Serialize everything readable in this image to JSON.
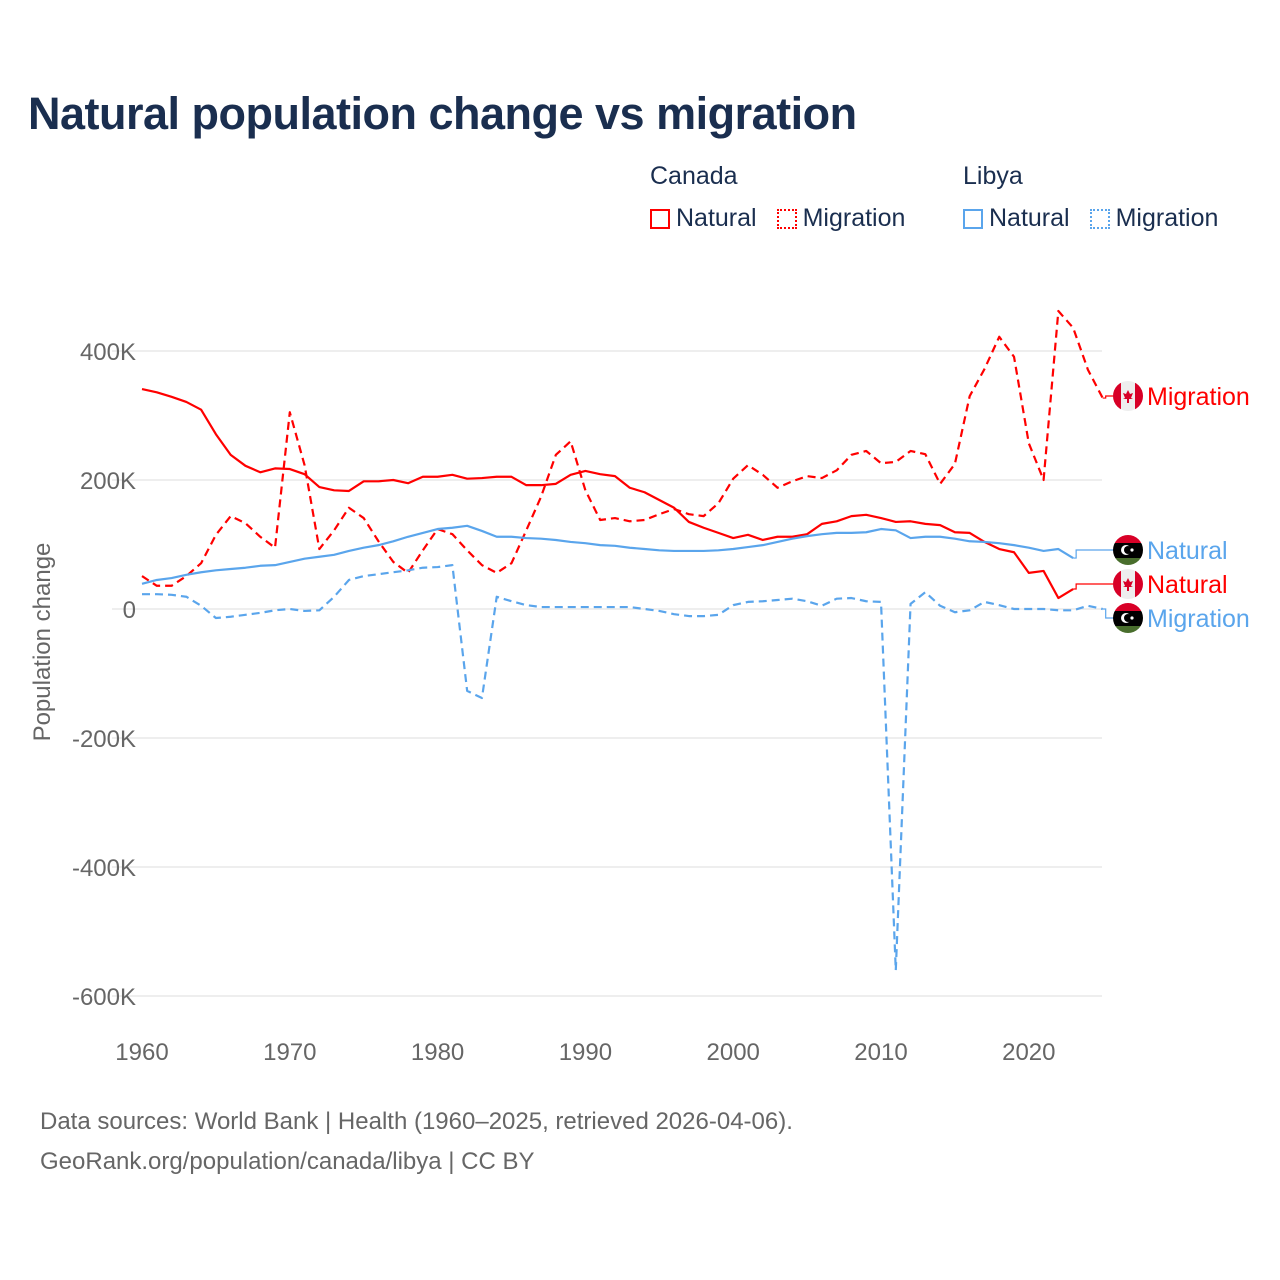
{
  "chart_data": {
    "type": "line",
    "title": "Natural population change vs migration",
    "xlabel": "",
    "ylabel": "Population change",
    "xlim": [
      1960,
      2025
    ],
    "ylim": [
      -600,
      450
    ],
    "y_unit": "thousands",
    "grid": true,
    "legend_placement": "top-right",
    "x_ticks": [
      "1960",
      "1970",
      "1980",
      "1990",
      "2000",
      "2010",
      "2020"
    ],
    "y_ticks": [
      {
        "value": 400,
        "label": "400K"
      },
      {
        "value": 200,
        "label": "200K"
      },
      {
        "value": 0,
        "label": "0"
      },
      {
        "value": -200,
        "label": "-200K"
      },
      {
        "value": -400,
        "label": "-400K"
      },
      {
        "value": -600,
        "label": "-600K"
      }
    ],
    "legend": [
      {
        "group": "Canada",
        "items": [
          {
            "label": "Natural",
            "color": "#ff0000",
            "style": "solid"
          },
          {
            "label": "Migration",
            "color": "#ff0000",
            "style": "dotted"
          }
        ]
      },
      {
        "group": "Libya",
        "items": [
          {
            "label": "Natural",
            "color": "#5aa5ec",
            "style": "solid"
          },
          {
            "label": "Migration",
            "color": "#5aa5ec",
            "style": "dotted"
          }
        ]
      }
    ],
    "series": [
      {
        "name": "Canada Natural",
        "label": "Natural",
        "country": "canada",
        "color": "#ff0000",
        "dash": false,
        "start": 1960,
        "values": [
          341,
          336,
          329,
          321,
          309,
          271,
          239,
          222,
          212,
          218,
          217,
          209,
          189,
          184,
          183,
          198,
          198,
          200,
          195,
          205,
          205,
          208,
          202,
          203,
          205,
          205,
          192,
          192,
          194,
          208,
          214,
          209,
          206,
          188,
          181,
          169,
          157,
          135,
          126,
          118,
          110,
          115,
          107,
          112,
          112,
          116,
          132,
          136,
          144,
          146,
          141,
          135,
          136,
          132,
          130,
          119,
          118,
          104,
          93,
          88,
          56,
          59,
          17,
          31
        ]
      },
      {
        "name": "Canada Migration",
        "label": "Migration",
        "country": "canada",
        "color": "#ff0000",
        "dash": true,
        "start": 1960,
        "values": [
          51,
          36,
          36,
          51,
          71,
          115,
          144,
          133,
          112,
          95,
          305,
          223,
          93,
          122,
          157,
          141,
          105,
          73,
          56,
          91,
          124,
          116,
          91,
          68,
          56,
          71,
          122,
          174,
          239,
          260,
          184,
          138,
          141,
          136,
          138,
          147,
          155,
          147,
          144,
          164,
          202,
          223,
          208,
          188,
          198,
          206,
          203,
          215,
          239,
          245,
          226,
          228,
          245,
          240,
          194,
          225,
          330,
          372,
          422,
          391,
          257,
          200,
          462,
          436,
          371,
          327
        ]
      },
      {
        "name": "Libya Natural",
        "label": "Natural",
        "country": "libya",
        "color": "#5aa5ec",
        "dash": false,
        "start": 1960,
        "values": [
          39,
          45,
          48,
          53,
          57,
          60,
          62,
          64,
          67,
          68,
          73,
          78,
          81,
          84,
          90,
          95,
          99,
          105,
          112,
          118,
          124,
          126,
          129,
          121,
          112,
          112,
          110,
          109,
          107,
          104,
          102,
          99,
          98,
          95,
          93,
          91,
          90,
          90,
          90,
          91,
          93,
          96,
          99,
          104,
          109,
          113,
          116,
          118,
          118,
          119,
          124,
          122,
          110,
          112,
          112,
          109,
          105,
          104,
          102,
          99,
          95,
          90,
          93,
          79
        ]
      },
      {
        "name": "Libya Migration",
        "label": "Migration",
        "country": "libya",
        "color": "#5aa5ec",
        "dash": true,
        "start": 1960,
        "values": [
          23,
          23,
          22,
          19,
          5,
          -14,
          -12,
          -9,
          -6,
          -2,
          0,
          -3,
          -2,
          19,
          45,
          51,
          54,
          57,
          60,
          64,
          65,
          68,
          -127,
          -138,
          19,
          12,
          6,
          3,
          3,
          3,
          3,
          3,
          3,
          3,
          0,
          -3,
          -8,
          -11,
          -11,
          -9,
          6,
          11,
          12,
          14,
          16,
          12,
          5,
          16,
          17,
          12,
          11,
          -560,
          8,
          26,
          5,
          -5,
          -2,
          11,
          6,
          0,
          0,
          0,
          -2,
          -2,
          5,
          0
        ]
      }
    ]
  },
  "footer": {
    "line1": "Data sources: World Bank | Health (1960–2025, retrieved 2026-04-06).",
    "line2": "GeoRank.org/population/canada/libya | CC BY"
  }
}
